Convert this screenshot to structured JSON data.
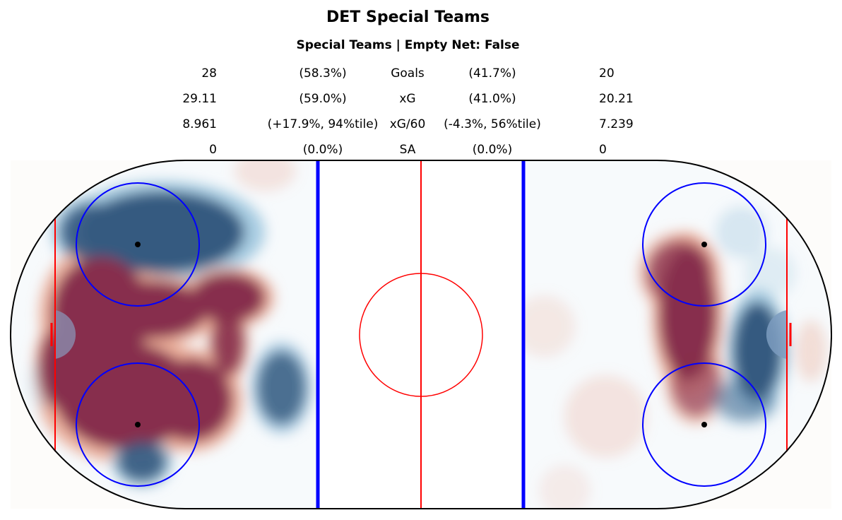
{
  "chart_data": {
    "type": "heatmap",
    "title": "DET Special Teams",
    "subtitle": "Special Teams | Empty Net: False",
    "stats_table": [
      {
        "label": "Goals",
        "left_value": "28",
        "left_pct": "(58.3%)",
        "right_pct": "(41.7%)",
        "right_value": "20"
      },
      {
        "label": "xG",
        "left_value": "29.11",
        "left_pct": "(59.0%)",
        "right_pct": "(41.0%)",
        "right_value": "20.21"
      },
      {
        "label": "xG/60",
        "left_value": "8.961",
        "left_pct": "(+17.9%, 94%tile)",
        "right_pct": "(-4.3%, 56%tile)",
        "right_value": "7.239"
      },
      {
        "label": "SA",
        "left_value": "0",
        "left_pct": "(0.0%)",
        "right_pct": "(0.0%)",
        "right_value": "0"
      }
    ],
    "rink": {
      "x_range_ft": [
        -100,
        100
      ],
      "y_range_ft": [
        -42.5,
        42.5
      ]
    },
    "colors": {
      "positive": "#872f4d",
      "negative": "#355a80",
      "blue_line": "#0000ff",
      "red_line": "#ff0000",
      "crease": "#8a86a8"
    },
    "heat_regions": [
      {
        "x": -63,
        "y": 25,
        "rx": 20,
        "ry": 10,
        "value": -1
      },
      {
        "x": -80,
        "y": 25,
        "rx": 8,
        "ry": 7,
        "value": -0.9
      },
      {
        "x": -78,
        "y": 5,
        "rx": 12,
        "ry": 14,
        "value": 1
      },
      {
        "x": -66,
        "y": 6,
        "rx": 14,
        "ry": 7,
        "value": 1
      },
      {
        "x": -72,
        "y": -15,
        "rx": 17,
        "ry": 13,
        "value": 1
      },
      {
        "x": -56,
        "y": -16,
        "rx": 10,
        "ry": 10,
        "value": 1
      },
      {
        "x": -47,
        "y": 9,
        "rx": 9,
        "ry": 6,
        "value": 1
      },
      {
        "x": -47,
        "y": -2,
        "rx": 4,
        "ry": 8,
        "value": 0.9
      },
      {
        "x": -88,
        "y": -8,
        "rx": 5,
        "ry": 10,
        "value": 1
      },
      {
        "x": -68,
        "y": -31,
        "rx": 6,
        "ry": 5,
        "value": -0.9
      },
      {
        "x": -34,
        "y": -13,
        "rx": 6,
        "ry": 9,
        "value": -0.85
      },
      {
        "x": -38,
        "y": 40,
        "rx": 6,
        "ry": 4,
        "value": 0.3
      },
      {
        "x": -92,
        "y": -12,
        "rx": 3,
        "ry": 5,
        "value": -0.3
      },
      {
        "x": 65,
        "y": 5,
        "rx": 7,
        "ry": 16,
        "value": 1
      },
      {
        "x": 63,
        "y": 15,
        "rx": 8,
        "ry": 8,
        "value": 0.8
      },
      {
        "x": 67,
        "y": -12,
        "rx": 6,
        "ry": 8,
        "value": 0.7
      },
      {
        "x": 82,
        "y": -4,
        "rx": 6,
        "ry": 12,
        "value": -1
      },
      {
        "x": 79,
        "y": -16,
        "rx": 7,
        "ry": 5,
        "value": -0.6
      },
      {
        "x": 78,
        "y": 25,
        "rx": 5,
        "ry": 5,
        "value": -0.4
      },
      {
        "x": 95,
        "y": -4,
        "rx": 3,
        "ry": 6,
        "value": 0.4
      },
      {
        "x": 30,
        "y": 2,
        "rx": 6,
        "ry": 6,
        "value": 0.25
      },
      {
        "x": 45,
        "y": -20,
        "rx": 8,
        "ry": 8,
        "value": 0.3
      },
      {
        "x": 35,
        "y": -38,
        "rx": 5,
        "ry": 5,
        "value": 0.2
      },
      {
        "x": 85,
        "y": 15,
        "rx": 5,
        "ry": 5,
        "value": -0.3
      }
    ]
  }
}
